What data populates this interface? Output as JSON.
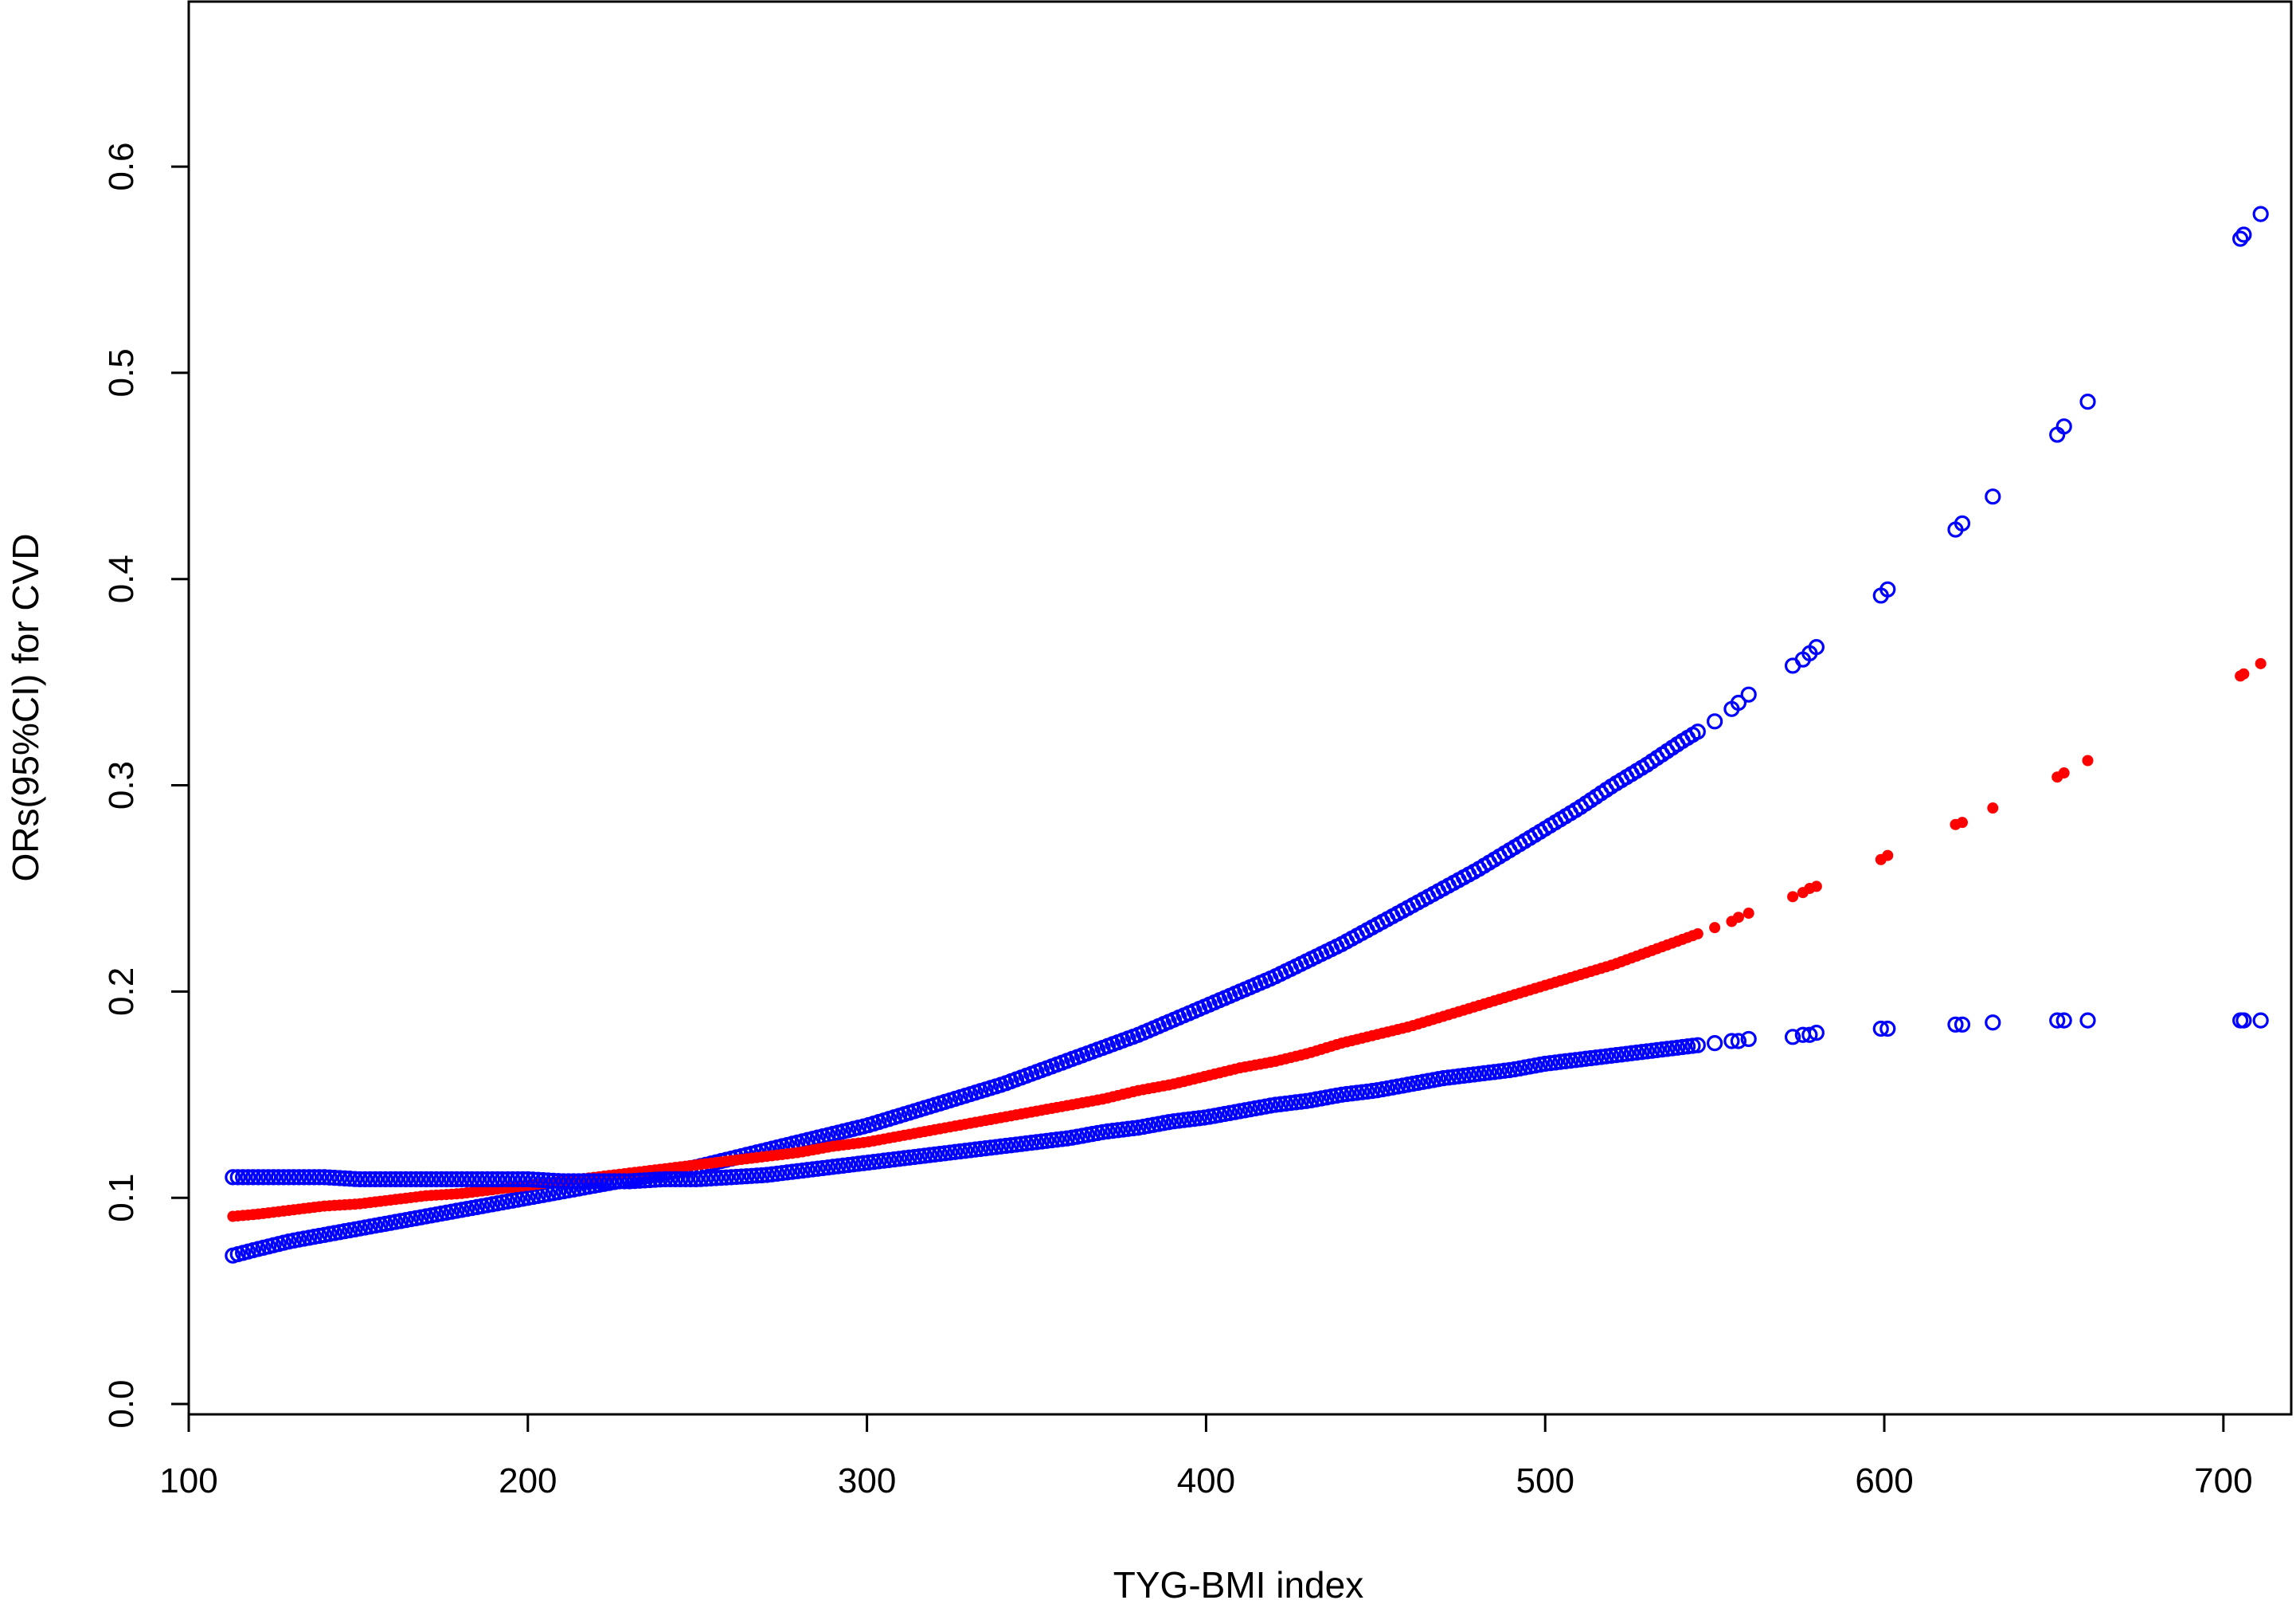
{
  "chart_data": {
    "type": "scatter",
    "title": "",
    "xlabel": "TYG-BMI index",
    "ylabel": "ORs(95%CI) for CVD",
    "xlim": [
      100,
      720
    ],
    "ylim": [
      -0.005,
      0.68
    ],
    "xticks": [
      100,
      200,
      300,
      400,
      500,
      600,
      700
    ],
    "yticks": [
      0.0,
      0.1,
      0.2,
      0.3,
      0.4,
      0.5,
      0.6
    ],
    "xtick_labels": [
      "100",
      "200",
      "300",
      "400",
      "500",
      "600",
      "700"
    ],
    "ytick_labels": [
      "0.0",
      "0.1",
      "0.2",
      "0.3",
      "0.4",
      "0.5",
      "0.6"
    ],
    "grid": false,
    "legend": "none",
    "series": [
      {
        "key": "upper_ci",
        "color": "#0000ff",
        "marker": "open-circle",
        "x": [
          113,
          120,
          130,
          140,
          150,
          160,
          170,
          180,
          190,
          200,
          210,
          220,
          230,
          240,
          250,
          260,
          270,
          280,
          290,
          300,
          310,
          320,
          330,
          340,
          350,
          360,
          370,
          380,
          390,
          400,
          410,
          420,
          430,
          440,
          450,
          460,
          470,
          480,
          490,
          500,
          510,
          520,
          530,
          540,
          545,
          550,
          555,
          557,
          560,
          573,
          576,
          578,
          580,
          599,
          601,
          621,
          623,
          632,
          651,
          653,
          660,
          705,
          706,
          711
        ],
        "y": [
          0.072,
          0.075,
          0.079,
          0.082,
          0.085,
          0.088,
          0.091,
          0.094,
          0.097,
          0.1,
          0.103,
          0.106,
          0.109,
          0.112,
          0.115,
          0.119,
          0.123,
          0.127,
          0.131,
          0.135,
          0.14,
          0.145,
          0.15,
          0.155,
          0.161,
          0.167,
          0.173,
          0.179,
          0.186,
          0.193,
          0.2,
          0.207,
          0.215,
          0.223,
          0.232,
          0.241,
          0.25,
          0.259,
          0.269,
          0.279,
          0.289,
          0.3,
          0.31,
          0.321,
          0.326,
          0.331,
          0.337,
          0.34,
          0.344,
          0.358,
          0.361,
          0.364,
          0.367,
          0.392,
          0.395,
          0.424,
          0.427,
          0.44,
          0.47,
          0.474,
          0.486,
          0.565,
          0.567,
          0.577
        ]
      },
      {
        "key": "estimate",
        "color": "#ff0000",
        "marker": "filled-dot",
        "x": [
          113,
          120,
          130,
          140,
          150,
          160,
          170,
          180,
          190,
          200,
          210,
          220,
          230,
          240,
          250,
          260,
          270,
          280,
          290,
          300,
          310,
          320,
          330,
          340,
          350,
          360,
          370,
          380,
          390,
          400,
          410,
          420,
          430,
          440,
          450,
          460,
          470,
          480,
          490,
          500,
          510,
          520,
          530,
          540,
          545,
          550,
          555,
          557,
          560,
          573,
          576,
          578,
          580,
          599,
          601,
          621,
          623,
          632,
          651,
          653,
          660,
          705,
          706,
          711
        ],
        "y": [
          0.091,
          0.092,
          0.094,
          0.096,
          0.097,
          0.099,
          0.101,
          0.102,
          0.104,
          0.106,
          0.108,
          0.11,
          0.112,
          0.114,
          0.116,
          0.118,
          0.12,
          0.122,
          0.125,
          0.127,
          0.13,
          0.133,
          0.136,
          0.139,
          0.142,
          0.145,
          0.148,
          0.152,
          0.155,
          0.159,
          0.163,
          0.166,
          0.17,
          0.175,
          0.179,
          0.183,
          0.188,
          0.193,
          0.198,
          0.203,
          0.208,
          0.213,
          0.219,
          0.225,
          0.228,
          0.231,
          0.234,
          0.236,
          0.238,
          0.246,
          0.248,
          0.25,
          0.251,
          0.264,
          0.266,
          0.281,
          0.282,
          0.289,
          0.304,
          0.306,
          0.312,
          0.353,
          0.354,
          0.359
        ]
      },
      {
        "key": "lower_ci",
        "color": "#0000ff",
        "marker": "open-circle",
        "x": [
          113,
          120,
          130,
          140,
          150,
          160,
          170,
          180,
          190,
          200,
          210,
          220,
          230,
          240,
          250,
          260,
          270,
          280,
          290,
          300,
          310,
          320,
          330,
          340,
          350,
          360,
          370,
          380,
          390,
          400,
          410,
          420,
          430,
          440,
          450,
          460,
          470,
          480,
          490,
          500,
          510,
          520,
          530,
          540,
          545,
          550,
          555,
          557,
          560,
          573,
          576,
          578,
          580,
          599,
          601,
          621,
          623,
          632,
          651,
          653,
          660,
          705,
          706,
          711
        ],
        "y": [
          0.11,
          0.11,
          0.11,
          0.11,
          0.109,
          0.109,
          0.109,
          0.109,
          0.109,
          0.109,
          0.108,
          0.108,
          0.108,
          0.109,
          0.109,
          0.11,
          0.111,
          0.113,
          0.115,
          0.117,
          0.119,
          0.121,
          0.123,
          0.125,
          0.127,
          0.129,
          0.132,
          0.134,
          0.137,
          0.139,
          0.142,
          0.145,
          0.147,
          0.15,
          0.152,
          0.155,
          0.158,
          0.16,
          0.162,
          0.165,
          0.167,
          0.169,
          0.171,
          0.173,
          0.174,
          0.175,
          0.176,
          0.176,
          0.177,
          0.178,
          0.179,
          0.179,
          0.18,
          0.182,
          0.182,
          0.184,
          0.184,
          0.185,
          0.186,
          0.186,
          0.186,
          0.186,
          0.186,
          0.186
        ]
      }
    ]
  }
}
